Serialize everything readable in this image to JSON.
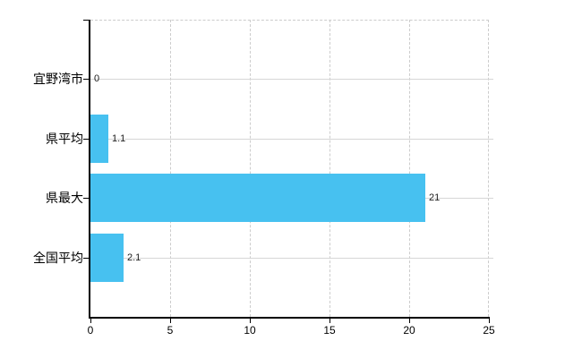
{
  "chart_data": {
    "type": "bar",
    "orientation": "horizontal",
    "title": "",
    "categories": [
      "宜野湾市",
      "県平均",
      "県最大",
      "全国平均"
    ],
    "values": [
      0,
      1.1,
      21,
      2.1
    ],
    "value_labels": [
      "0",
      "1.1",
      "21",
      "2.1"
    ],
    "x_ticks": [
      0,
      5,
      10,
      15,
      20,
      25
    ],
    "x_tick_labels": [
      "0",
      "5",
      "10",
      "15",
      "20",
      "25"
    ],
    "xlim": [
      0,
      25
    ],
    "grid": true,
    "legend": false,
    "gridline_style": {
      "horizontal": "solid",
      "vertical": "dashed"
    },
    "colors": {
      "bar": "#47C1F0",
      "axis": "#000000",
      "gridline_solid": "#d6d6d6",
      "gridline_dashed": "#cccccc",
      "text": "#000000",
      "background": "#ffffff"
    }
  }
}
